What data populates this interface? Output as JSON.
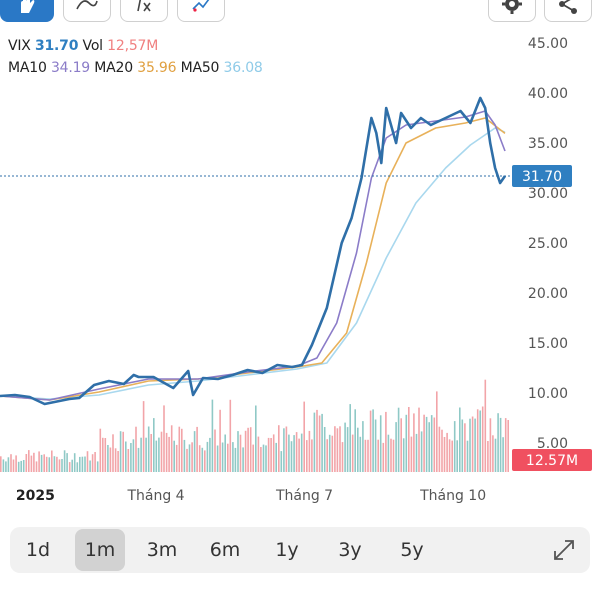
{
  "toolbar": {
    "buttons": [
      {
        "name": "hand-tool-button",
        "icon": "hand-icon"
      },
      {
        "name": "draw-line-button",
        "icon": "line-draw-icon"
      },
      {
        "name": "indicator-button",
        "icon": "function-icon"
      },
      {
        "name": "compare-button",
        "icon": "compare-icon"
      },
      {
        "name": "settings-button",
        "icon": "gear-icon"
      },
      {
        "name": "share-button",
        "icon": "share-icon"
      }
    ]
  },
  "legend": {
    "symbol": "VIX",
    "price": "31.70",
    "vol_label": "Vol",
    "vol_value": "12,57M",
    "ma10_label": "MA10",
    "ma10_value": "34.19",
    "ma20_label": "MA20",
    "ma20_value": "35.96",
    "ma50_label": "MA50",
    "ma50_value": "36.08"
  },
  "colors": {
    "price_line": "#2f6fa8",
    "ma10": "#8b7cc8",
    "ma20": "#e8b15a",
    "ma50": "#a9d8ee",
    "vol_up": "#8fc9c6",
    "vol_down": "#f2a4a8",
    "last_price_bg": "#2f7fc1",
    "last_vol_bg": "#f05060",
    "axis_text": "#555555",
    "accent": "#2a78c6"
  },
  "chart_data": {
    "type": "line",
    "title": "",
    "xlabel": "",
    "ylabel": "",
    "ylim": [
      5,
      45
    ],
    "y_ticks": [
      "45.00",
      "40.00",
      "35.00",
      "30.00",
      "25.00",
      "20.00",
      "15.00",
      "10.00",
      "5.00"
    ],
    "x_tick_labels": [
      "2025",
      "Tháng 4",
      "Tháng 7",
      "Tháng 10"
    ],
    "x_range_months": [
      0,
      10.3
    ],
    "x_tick_positions_months": [
      0.15,
      3.15,
      6.15,
      9.15
    ],
    "last_price_label": "31.70",
    "last_volume_label": "12.57M",
    "series": [
      {
        "name": "VIX",
        "x_months": [
          0.0,
          0.3,
          0.6,
          0.9,
          1.2,
          1.4,
          1.6,
          1.9,
          2.2,
          2.5,
          2.7,
          2.8,
          3.1,
          3.5,
          3.8,
          3.9,
          4.1,
          4.4,
          4.7,
          5.0,
          5.3,
          5.6,
          5.9,
          6.1,
          6.3,
          6.6,
          6.9,
          7.1,
          7.3,
          7.5,
          7.6,
          7.7,
          7.8,
          8.0,
          8.1,
          8.3,
          8.5,
          8.7,
          9.0,
          9.3,
          9.5,
          9.7,
          9.8,
          9.9,
          10.0,
          10.1,
          10.2
        ],
        "values": [
          9.7,
          9.8,
          9.6,
          8.9,
          9.2,
          9.4,
          9.5,
          10.8,
          11.2,
          10.9,
          11.8,
          11.6,
          11.6,
          10.5,
          12.2,
          9.8,
          11.5,
          11.4,
          11.8,
          12.3,
          12.0,
          12.8,
          12.6,
          12.8,
          14.8,
          18.5,
          25.0,
          27.5,
          31.5,
          37.5,
          36.0,
          33.0,
          38.5,
          35.0,
          38.0,
          36.5,
          37.5,
          36.8,
          37.5,
          38.2,
          37.0,
          39.5,
          38.5,
          35.0,
          32.5,
          31.0,
          31.7
        ]
      },
      {
        "name": "MA10",
        "x_months": [
          0.0,
          1.0,
          2.0,
          3.0,
          4.0,
          5.0,
          6.0,
          6.4,
          6.8,
          7.2,
          7.5,
          7.8,
          8.2,
          8.8,
          9.4,
          9.8,
          10.0,
          10.2
        ],
        "values": [
          9.7,
          9.3,
          10.4,
          11.4,
          11.4,
          12.1,
          12.7,
          13.5,
          17.0,
          24.0,
          31.5,
          35.5,
          36.8,
          37.2,
          37.6,
          38.2,
          36.8,
          34.2
        ]
      },
      {
        "name": "MA20",
        "x_months": [
          0.0,
          1.0,
          2.0,
          3.0,
          4.0,
          5.0,
          6.0,
          6.5,
          7.0,
          7.4,
          7.8,
          8.2,
          8.8,
          9.4,
          9.8,
          10.2
        ],
        "values": [
          9.7,
          9.3,
          10.1,
          11.2,
          11.4,
          12.0,
          12.6,
          13.0,
          16.0,
          23.0,
          31.0,
          35.0,
          36.5,
          37.0,
          37.5,
          35.96
        ]
      },
      {
        "name": "MA50",
        "x_months": [
          0.0,
          1.0,
          2.0,
          3.0,
          4.0,
          5.0,
          6.0,
          6.6,
          7.2,
          7.8,
          8.4,
          9.0,
          9.5,
          10.0,
          10.2
        ],
        "values": [
          9.7,
          9.4,
          9.8,
          10.8,
          11.2,
          11.8,
          12.4,
          13.0,
          17.0,
          23.5,
          29.0,
          32.5,
          34.8,
          36.5,
          36.08
        ]
      }
    ],
    "volume": {
      "unit": "M",
      "axis_note": "volume bars at bottom of price panel, max ~10M"
    }
  },
  "periods": [
    "1d",
    "1m",
    "3m",
    "6m",
    "1y",
    "3y",
    "5y"
  ],
  "active_period": "1m",
  "expand_icon": "expand-icon"
}
